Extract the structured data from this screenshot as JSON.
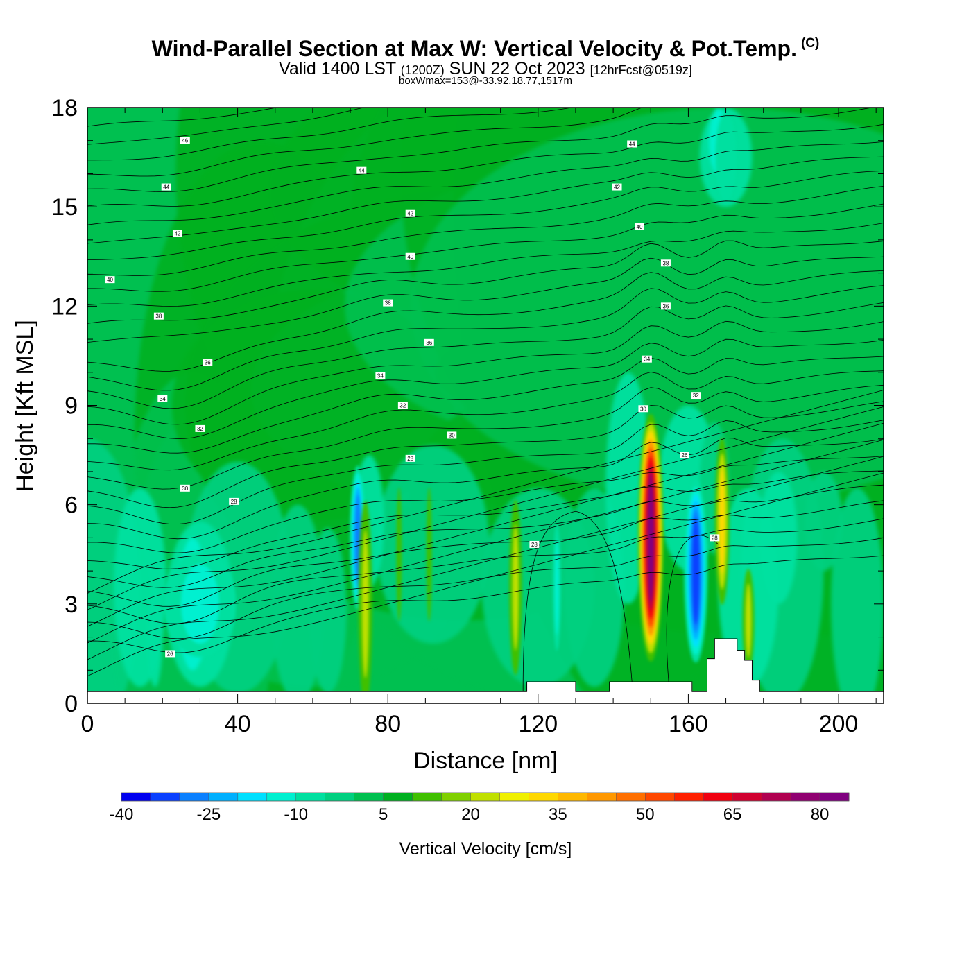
{
  "header": {
    "title": "Wind-Parallel Section at Max W: Vertical Velocity & Pot.Temp.",
    "copyright_mark": "(C)",
    "subtitle_a": "Valid 1400 LST",
    "subtitle_b": "(1200Z)",
    "subtitle_c": "SUN 22 Oct 2023",
    "subtitle_d": "[12hrFcst@0519z]",
    "subtitle2": "boxWmax=153@-33.92,18.77,1517m"
  },
  "chart_data": {
    "type": "heatmap",
    "xlabel": "Distance [nm]",
    "ylabel": "Height [Kft MSL]",
    "xlim": [
      0,
      212
    ],
    "ylim": [
      0,
      18
    ],
    "x_ticks": [
      0,
      40,
      80,
      120,
      160,
      200
    ],
    "y_ticks": [
      0,
      3,
      6,
      9,
      12,
      15,
      18
    ],
    "colorbar": {
      "title": "Vertical Velocity [cm/s]",
      "tick_labels": [
        "-40",
        "-25",
        "-10",
        "5",
        "20",
        "35",
        "50",
        "65",
        "80"
      ],
      "tick_values": [
        -40,
        -25,
        -10,
        5,
        20,
        35,
        50,
        65,
        80
      ],
      "levels": [
        -40,
        -35,
        -30,
        -25,
        -20,
        -15,
        -10,
        -5,
        0,
        5,
        10,
        15,
        20,
        25,
        30,
        35,
        40,
        45,
        50,
        55,
        60,
        65,
        70,
        75,
        80,
        85
      ],
      "colors": [
        "#0000f0",
        "#0a40ff",
        "#0a80ff",
        "#00b0ff",
        "#00e0ff",
        "#00f0d0",
        "#00e0a0",
        "#00d080",
        "#00c050",
        "#00b020",
        "#40c000",
        "#80d000",
        "#c0e000",
        "#f0f000",
        "#ffd800",
        "#ffb800",
        "#ff9800",
        "#ff7000",
        "#ff4800",
        "#ff2000",
        "#f00010",
        "#d00030",
        "#b00050",
        "#900070",
        "#800080"
      ]
    },
    "vertical_velocity_features": [
      {
        "x": 72,
        "y": 5.0,
        "value": -30
      },
      {
        "x": 74,
        "y": 3.0,
        "value": 20
      },
      {
        "x": 83,
        "y": 4.5,
        "value": 10
      },
      {
        "x": 91,
        "y": 4.5,
        "value": 10
      },
      {
        "x": 114,
        "y": 3.5,
        "value": 25
      },
      {
        "x": 125,
        "y": 3.5,
        "value": -15
      },
      {
        "x": 150,
        "y": 5.0,
        "value": 80
      },
      {
        "x": 162,
        "y": 4.0,
        "value": -35
      },
      {
        "x": 169,
        "y": 5.5,
        "value": 30
      },
      {
        "x": 176,
        "y": 2.5,
        "value": 20
      },
      {
        "x": 30,
        "y": 3.0,
        "value": -15
      },
      {
        "x": 170,
        "y": 16.5,
        "value": -12
      }
    ],
    "potential_temperature_labels": [
      {
        "text": "46",
        "x": 26,
        "y": 17.0
      },
      {
        "text": "44",
        "x": 21,
        "y": 15.6
      },
      {
        "text": "42",
        "x": 24,
        "y": 14.2
      },
      {
        "text": "40",
        "x": 6,
        "y": 12.8
      },
      {
        "text": "38",
        "x": 19,
        "y": 11.7
      },
      {
        "text": "36",
        "x": 32,
        "y": 10.3
      },
      {
        "text": "34",
        "x": 20,
        "y": 9.2
      },
      {
        "text": "32",
        "x": 30,
        "y": 8.3
      },
      {
        "text": "30",
        "x": 26,
        "y": 6.5
      },
      {
        "text": "28",
        "x": 39,
        "y": 6.1
      },
      {
        "text": "26",
        "x": 22,
        "y": 1.5
      },
      {
        "text": "44",
        "x": 73,
        "y": 16.1
      },
      {
        "text": "42",
        "x": 86,
        "y": 14.8
      },
      {
        "text": "40",
        "x": 86,
        "y": 13.5
      },
      {
        "text": "38",
        "x": 80,
        "y": 12.1
      },
      {
        "text": "36",
        "x": 91,
        "y": 10.9
      },
      {
        "text": "34",
        "x": 78,
        "y": 9.9
      },
      {
        "text": "32",
        "x": 84,
        "y": 9.0
      },
      {
        "text": "30",
        "x": 97,
        "y": 8.1
      },
      {
        "text": "28",
        "x": 86,
        "y": 7.4
      },
      {
        "text": "28",
        "x": 119,
        "y": 4.8
      },
      {
        "text": "44",
        "x": 145,
        "y": 16.9
      },
      {
        "text": "42",
        "x": 141,
        "y": 15.6
      },
      {
        "text": "40",
        "x": 147,
        "y": 14.4
      },
      {
        "text": "38",
        "x": 154,
        "y": 13.3
      },
      {
        "text": "36",
        "x": 154,
        "y": 12.0
      },
      {
        "text": "34",
        "x": 149,
        "y": 10.4
      },
      {
        "text": "32",
        "x": 162,
        "y": 9.3
      },
      {
        "text": "30",
        "x": 148,
        "y": 8.9
      },
      {
        "text": "26",
        "x": 159,
        "y": 7.5
      },
      {
        "text": "28",
        "x": 167,
        "y": 5.0
      }
    ],
    "terrain": [
      {
        "x0": 0,
        "x1": 117,
        "top": 0.35
      },
      {
        "x0": 117,
        "x1": 130,
        "top": 0.65
      },
      {
        "x0": 130,
        "x1": 139,
        "top": 0.35
      },
      {
        "x0": 139,
        "x1": 161,
        "top": 0.65
      },
      {
        "x0": 161,
        "x1": 165,
        "top": 0.35
      },
      {
        "x0": 165,
        "x1": 167,
        "top": 1.35
      },
      {
        "x0": 167,
        "x1": 173,
        "top": 1.95
      },
      {
        "x0": 173,
        "x1": 175,
        "top": 1.6
      },
      {
        "x0": 175,
        "x1": 177,
        "top": 1.3
      },
      {
        "x0": 177,
        "x1": 179,
        "top": 0.7
      },
      {
        "x0": 179,
        "x1": 212,
        "top": 0.35
      }
    ]
  }
}
